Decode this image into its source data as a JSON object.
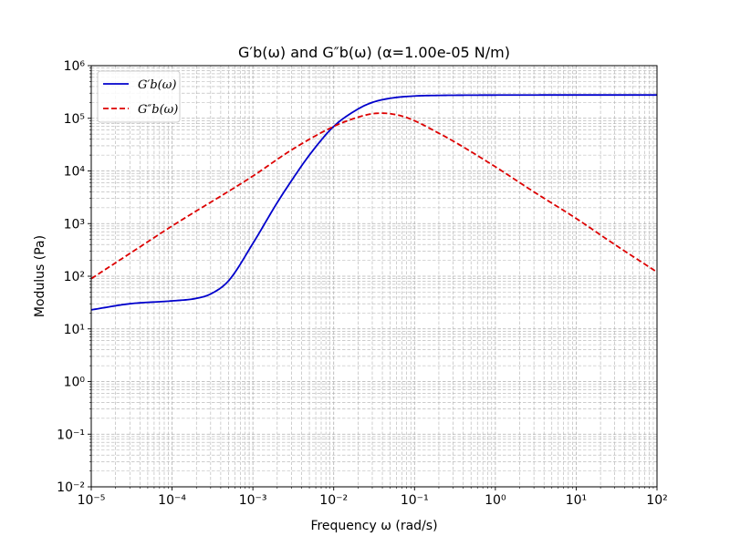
{
  "chart_data": {
    "type": "line",
    "title": "G′b(ω) and G″b(ω) (α=1.00e-05 N/m)",
    "xlabel": "Frequency ω (rad/s)",
    "ylabel": "Modulus (Pa)",
    "xscale": "log",
    "yscale": "log",
    "xlim": [
      1e-05,
      100
    ],
    "ylim": [
      0.01,
      1000000
    ],
    "grid": "major and minor, dashed",
    "legend_position": "upper-left",
    "x_tick_labels": [
      "10⁻⁵",
      "10⁻⁴",
      "10⁻³",
      "10⁻²",
      "10⁻¹",
      "10⁰",
      "10¹",
      "10²"
    ],
    "y_tick_labels": [
      "10⁻²",
      "10⁻¹",
      "10⁰",
      "10¹",
      "10²",
      "10³",
      "10⁴",
      "10⁵",
      "10⁶"
    ],
    "series": [
      {
        "name": "G′b(ω)",
        "color": "#0000cc",
        "style": "solid",
        "x": [
          1e-05,
          3e-05,
          0.0001,
          0.0002,
          0.0003,
          0.0005,
          0.001,
          0.002,
          0.003,
          0.005,
          0.01,
          0.02,
          0.03,
          0.05,
          0.1,
          0.2,
          0.5,
          1,
          10,
          100
        ],
        "y": [
          23,
          30,
          34,
          38,
          46,
          82,
          420,
          2500,
          6500,
          20000,
          70000,
          150000,
          200000,
          240000,
          265000,
          272000,
          275000,
          276000,
          277000,
          277000
        ]
      },
      {
        "name": "G″b(ω)",
        "color": "#dd0000",
        "style": "dashed",
        "x": [
          1e-05,
          3e-05,
          0.0001,
          0.001,
          0.003,
          0.01,
          0.02,
          0.03,
          0.04,
          0.05,
          0.07,
          0.1,
          0.2,
          0.3,
          1,
          3,
          10,
          30,
          100
        ],
        "y": [
          90,
          270,
          900,
          8000,
          25000,
          70000,
          105000,
          122000,
          125000,
          122000,
          110000,
          90000,
          52000,
          37000,
          12000,
          4000,
          1250,
          400,
          120
        ]
      }
    ]
  }
}
